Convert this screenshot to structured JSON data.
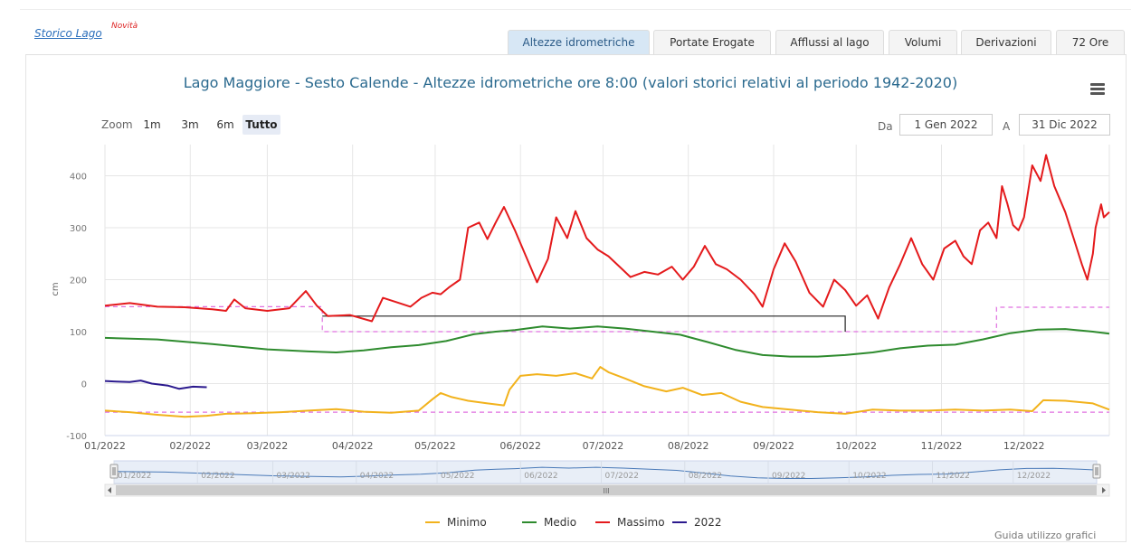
{
  "header": {
    "storico_link": "Storico Lago",
    "novita": "Novità"
  },
  "tabs": [
    {
      "label": "Altezze idrometriche",
      "active": true
    },
    {
      "label": "Portate Erogate",
      "active": false
    },
    {
      "label": "Afflussi al lago",
      "active": false
    },
    {
      "label": "Volumi",
      "active": false
    },
    {
      "label": "Derivazioni",
      "active": false
    },
    {
      "label": "72 Ore",
      "active": false
    }
  ],
  "zoom": {
    "label": "Zoom",
    "buttons": [
      {
        "label": "1m",
        "active": false
      },
      {
        "label": "3m",
        "active": false
      },
      {
        "label": "6m",
        "active": false
      },
      {
        "label": "Tutto",
        "active": true
      }
    ]
  },
  "range": {
    "from_label": "Da",
    "from_value": "1 Gen 2022",
    "to_label": "A",
    "to_value": "31 Dic 2022"
  },
  "chart_data": {
    "type": "line",
    "title": "Lago Maggiore - Sesto Calende - Altezze idrometriche ore 8:00 (valori storici relativi al periodo 1942-2020)",
    "ylabel": "cm",
    "ylim": [
      -100,
      460
    ],
    "yticks": [
      -100,
      0,
      100,
      200,
      300,
      400
    ],
    "xticks": [
      "01/2022",
      "02/2022",
      "03/2022",
      "04/2022",
      "05/2022",
      "06/2022",
      "07/2022",
      "08/2022",
      "09/2022",
      "10/2022",
      "11/2022",
      "12/2022"
    ],
    "navigator_labels": [
      "01/2022",
      "02/2022",
      "03/2022",
      "04/2022",
      "05/2022",
      "06/2022",
      "07/2022",
      "08/2022",
      "09/2022",
      "10/2022",
      "11/2022",
      "12/2022"
    ],
    "grid": true,
    "legend_position": "bottom-center",
    "colors": {
      "minimo": "#f2b21c",
      "medio": "#2e8b2e",
      "massimo": "#e41a1c",
      "y2022": "#2b1a8e",
      "limits": "#e070e0",
      "regulation": "#222222"
    },
    "series": [
      {
        "name": "Minimo",
        "points": [
          [
            1,
            -52
          ],
          [
            10,
            -55
          ],
          [
            20,
            -60
          ],
          [
            30,
            -64
          ],
          [
            38,
            -62
          ],
          [
            45,
            -58
          ],
          [
            55,
            -57
          ],
          [
            65,
            -55
          ],
          [
            75,
            -52
          ],
          [
            85,
            -49
          ],
          [
            95,
            -54
          ],
          [
            105,
            -56
          ],
          [
            115,
            -52
          ],
          [
            120,
            -30
          ],
          [
            123,
            -18
          ],
          [
            127,
            -26
          ],
          [
            133,
            -33
          ],
          [
            140,
            -38
          ],
          [
            146,
            -42
          ],
          [
            148,
            -12
          ],
          [
            152,
            15
          ],
          [
            158,
            18
          ],
          [
            165,
            15
          ],
          [
            172,
            20
          ],
          [
            178,
            10
          ],
          [
            181,
            32
          ],
          [
            184,
            22
          ],
          [
            190,
            10
          ],
          [
            197,
            -5
          ],
          [
            205,
            -15
          ],
          [
            211,
            -8
          ],
          [
            218,
            -22
          ],
          [
            225,
            -18
          ],
          [
            232,
            -35
          ],
          [
            240,
            -45
          ],
          [
            250,
            -50
          ],
          [
            260,
            -55
          ],
          [
            270,
            -58
          ],
          [
            280,
            -50
          ],
          [
            290,
            -52
          ],
          [
            300,
            -52
          ],
          [
            310,
            -50
          ],
          [
            320,
            -52
          ],
          [
            330,
            -50
          ],
          [
            338,
            -53
          ],
          [
            342,
            -32
          ],
          [
            350,
            -33
          ],
          [
            360,
            -38
          ],
          [
            366,
            -50
          ]
        ]
      },
      {
        "name": "Medio",
        "points": [
          [
            1,
            88
          ],
          [
            20,
            85
          ],
          [
            40,
            76
          ],
          [
            60,
            66
          ],
          [
            75,
            62
          ],
          [
            85,
            60
          ],
          [
            95,
            64
          ],
          [
            105,
            70
          ],
          [
            115,
            74
          ],
          [
            125,
            82
          ],
          [
            135,
            95
          ],
          [
            143,
            100
          ],
          [
            150,
            103
          ],
          [
            160,
            110
          ],
          [
            170,
            106
          ],
          [
            180,
            110
          ],
          [
            190,
            106
          ],
          [
            200,
            100
          ],
          [
            210,
            94
          ],
          [
            220,
            80
          ],
          [
            230,
            65
          ],
          [
            240,
            55
          ],
          [
            250,
            52
          ],
          [
            260,
            52
          ],
          [
            270,
            55
          ],
          [
            280,
            60
          ],
          [
            290,
            68
          ],
          [
            300,
            73
          ],
          [
            310,
            75
          ],
          [
            320,
            85
          ],
          [
            330,
            97
          ],
          [
            340,
            104
          ],
          [
            350,
            105
          ],
          [
            360,
            100
          ],
          [
            366,
            96
          ]
        ]
      },
      {
        "name": "Massimo",
        "points": [
          [
            1,
            150
          ],
          [
            10,
            155
          ],
          [
            20,
            148
          ],
          [
            30,
            147
          ],
          [
            40,
            143
          ],
          [
            45,
            140
          ],
          [
            48,
            162
          ],
          [
            52,
            145
          ],
          [
            60,
            140
          ],
          [
            68,
            145
          ],
          [
            74,
            178
          ],
          [
            78,
            150
          ],
          [
            82,
            130
          ],
          [
            90,
            132
          ],
          [
            98,
            120
          ],
          [
            100,
            165
          ],
          [
            105,
            155
          ],
          [
            108,
            148
          ],
          [
            112,
            165
          ],
          [
            117,
            175
          ],
          [
            120,
            172
          ],
          [
            124,
            185
          ],
          [
            128,
            200
          ],
          [
            131,
            300
          ],
          [
            135,
            310
          ],
          [
            139,
            278
          ],
          [
            142,
            310
          ],
          [
            144,
            340
          ],
          [
            148,
            295
          ],
          [
            152,
            245
          ],
          [
            156,
            195
          ],
          [
            160,
            240
          ],
          [
            163,
            320
          ],
          [
            167,
            280
          ],
          [
            170,
            332
          ],
          [
            174,
            280
          ],
          [
            178,
            258
          ],
          [
            182,
            245
          ],
          [
            186,
            225
          ],
          [
            190,
            205
          ],
          [
            195,
            215
          ],
          [
            200,
            210
          ],
          [
            205,
            225
          ],
          [
            209,
            200
          ],
          [
            213,
            225
          ],
          [
            217,
            265
          ],
          [
            221,
            230
          ],
          [
            225,
            220
          ],
          [
            230,
            200
          ],
          [
            235,
            172
          ],
          [
            238,
            148
          ],
          [
            242,
            220
          ],
          [
            246,
            270
          ],
          [
            250,
            235
          ],
          [
            255,
            175
          ],
          [
            260,
            148
          ],
          [
            264,
            200
          ],
          [
            268,
            180
          ],
          [
            272,
            150
          ],
          [
            276,
            170
          ],
          [
            280,
            125
          ],
          [
            284,
            185
          ],
          [
            288,
            230
          ],
          [
            292,
            280
          ],
          [
            296,
            230
          ],
          [
            300,
            200
          ],
          [
            305,
            260
          ],
          [
            310,
            275
          ],
          [
            315,
            245
          ],
          [
            320,
            230
          ],
          [
            325,
            295
          ],
          [
            330,
            310
          ],
          [
            335,
            280
          ],
          [
            338,
            380
          ],
          [
            340,
            345
          ],
          [
            343,
            305
          ],
          [
            346,
            295
          ],
          [
            349,
            320
          ],
          [
            352,
            420
          ],
          [
            355,
            390
          ],
          [
            358,
            370
          ],
          [
            361,
            355
          ],
          [
            365,
            340
          ],
          [
            366,
            338
          ]
        ]
      },
      {
        "name": "2022",
        "points": [
          [
            1,
            5
          ],
          [
            5,
            4
          ],
          [
            10,
            3
          ],
          [
            14,
            6
          ],
          [
            18,
            0
          ],
          [
            24,
            -4
          ],
          [
            28,
            -10
          ],
          [
            33,
            -6
          ],
          [
            38,
            -7
          ]
        ]
      }
    ],
    "massimo_points_x_end": [
      [
        1,
        150
      ],
      [
        10,
        155
      ],
      [
        20,
        148
      ],
      [
        30,
        147
      ],
      [
        40,
        143
      ],
      [
        45,
        140
      ],
      [
        48,
        162
      ],
      [
        52,
        145
      ],
      [
        60,
        140
      ],
      [
        68,
        145
      ],
      [
        74,
        178
      ],
      [
        78,
        150
      ],
      [
        82,
        130
      ],
      [
        90,
        132
      ],
      [
        98,
        120
      ],
      [
        102,
        165
      ],
      [
        108,
        155
      ],
      [
        112,
        148
      ],
      [
        116,
        165
      ],
      [
        120,
        175
      ],
      [
        123,
        172
      ],
      [
        126,
        185
      ],
      [
        130,
        200
      ],
      [
        133,
        300
      ],
      [
        137,
        310
      ],
      [
        140,
        278
      ],
      [
        143,
        310
      ],
      [
        146,
        340
      ],
      [
        150,
        295
      ],
      [
        154,
        245
      ],
      [
        158,
        195
      ],
      [
        162,
        240
      ],
      [
        165,
        320
      ],
      [
        169,
        280
      ],
      [
        172,
        332
      ],
      [
        176,
        280
      ],
      [
        180,
        258
      ],
      [
        184,
        245
      ],
      [
        188,
        225
      ],
      [
        192,
        205
      ],
      [
        197,
        215
      ],
      [
        202,
        210
      ],
      [
        207,
        225
      ],
      [
        211,
        200
      ],
      [
        215,
        225
      ],
      [
        219,
        265
      ],
      [
        223,
        230
      ],
      [
        227,
        220
      ],
      [
        232,
        200
      ],
      [
        237,
        172
      ],
      [
        240,
        148
      ],
      [
        244,
        220
      ],
      [
        248,
        270
      ],
      [
        252,
        235
      ],
      [
        257,
        175
      ],
      [
        262,
        148
      ],
      [
        266,
        200
      ],
      [
        270,
        180
      ],
      [
        274,
        150
      ],
      [
        278,
        170
      ],
      [
        282,
        125
      ],
      [
        286,
        185
      ],
      [
        290,
        230
      ],
      [
        294,
        280
      ],
      [
        298,
        230
      ],
      [
        302,
        200
      ],
      [
        306,
        260
      ],
      [
        310,
        275
      ],
      [
        313,
        245
      ],
      [
        316,
        230
      ],
      [
        319,
        295
      ],
      [
        322,
        310
      ],
      [
        325,
        280
      ],
      [
        327,
        380
      ],
      [
        329,
        345
      ],
      [
        331,
        305
      ],
      [
        333,
        295
      ],
      [
        335,
        320
      ],
      [
        338,
        420
      ],
      [
        341,
        390
      ],
      [
        343,
        440
      ],
      [
        346,
        380
      ],
      [
        350,
        330
      ],
      [
        353,
        280
      ],
      [
        356,
        230
      ],
      [
        358,
        200
      ],
      [
        360,
        250
      ],
      [
        361,
        300
      ],
      [
        363,
        345
      ],
      [
        364,
        320
      ],
      [
        366,
        330
      ]
    ]
  },
  "legend": [
    {
      "name": "Minimo",
      "color": "#f2b21c"
    },
    {
      "name": "Medio",
      "color": "#2e8b2e"
    },
    {
      "name": "Massimo",
      "color": "#e41a1c"
    },
    {
      "name": "2022",
      "color": "#2b1a8e"
    }
  ],
  "footer": {
    "guide": "Guida utilizzo grafici"
  }
}
